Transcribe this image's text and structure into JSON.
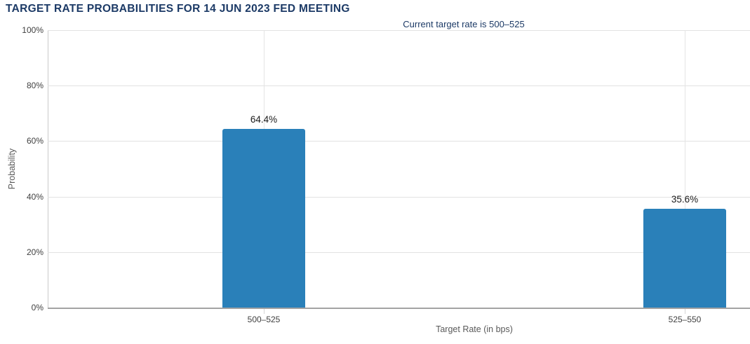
{
  "chart_data": {
    "type": "bar",
    "title": "TARGET RATE PROBABILITIES FOR 14 JUN 2023 FED MEETING",
    "subtitle": "Current target rate is 500–525",
    "categories": [
      "500–525",
      "525–550"
    ],
    "values": [
      64.4,
      35.6
    ],
    "value_labels": [
      "64.4%",
      "35.6%"
    ],
    "xlabel": "Target Rate (in bps)",
    "ylabel": "Probability",
    "ylim": [
      0,
      100
    ],
    "ytick_interval": 20,
    "yticks": [
      "0%",
      "20%",
      "40%",
      "60%",
      "80%",
      "100%"
    ],
    "grid": true,
    "legend": false,
    "bar_color": "#2a80b9",
    "title_color": "#1c3a66",
    "axis_text_color": "#404040"
  }
}
